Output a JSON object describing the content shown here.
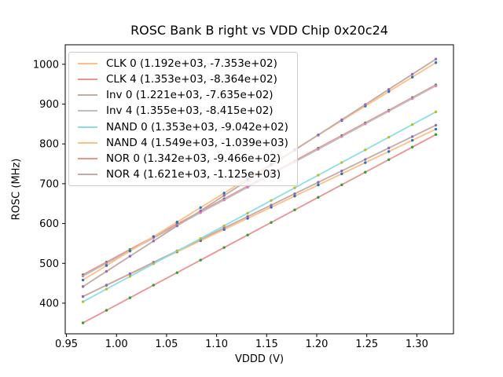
{
  "chart_data": {
    "type": "scatter",
    "title": "ROSC Bank B right vs VDD Chip 0x20c24",
    "xlabel": "VDDD (V)",
    "ylabel": "ROSC (MHz)",
    "xlim": [
      0.9488,
      1.3366
    ],
    "ylim": [
      323,
      1049
    ],
    "grid": false,
    "legend_position": "upper left",
    "xticks": [
      0.95,
      1.0,
      1.05,
      1.1,
      1.15,
      1.2,
      1.25,
      1.3
    ],
    "xtick_labels": [
      "0.95",
      "1.00",
      "1.05",
      "1.10",
      "1.15",
      "1.20",
      "1.25",
      "1.30"
    ],
    "yticks": [
      400,
      500,
      600,
      700,
      800,
      900,
      1000
    ],
    "ytick_labels": [
      "400",
      "500",
      "600",
      "700",
      "800",
      "900",
      "1000"
    ],
    "x": [
      0.9665,
      0.99,
      1.0135,
      1.037,
      1.0605,
      1.084,
      1.1075,
      1.131,
      1.1545,
      1.178,
      1.2015,
      1.225,
      1.2485,
      1.272,
      1.2955,
      1.319
    ],
    "series": [
      {
        "name": "CLK 0",
        "legend_label": "CLK 0 (1.192e+03, -7.353e+02)",
        "fit": {
          "slope": 1192,
          "intercept": -735.3
        },
        "y": [
          416.8,
          444.8,
          472.8,
          500.8,
          528.8,
          556.8,
          584.8,
          612.9,
          640.9,
          668.9,
          696.9,
          724.9,
          752.9,
          780.9,
          808.9,
          837.0
        ],
        "line_color": "#ffbf86",
        "marker_color": "#1f77b4"
      },
      {
        "name": "CLK 4",
        "legend_label": "CLK 4 (1.353e+03, -8.364e+02)",
        "fit": {
          "slope": 1353,
          "intercept": -836.4
        },
        "y": [
          471.3,
          503.1,
          534.9,
          566.7,
          598.5,
          630.2,
          662.0,
          693.8,
          725.6,
          757.4,
          789.2,
          821.0,
          852.8,
          884.6,
          916.4,
          948.2
        ],
        "line_color": "#ea9393",
        "marker_color": "#2ca02c"
      },
      {
        "name": "Inv 0",
        "legend_label": "Inv 0 (1.221e+03, -7.635e+02)",
        "fit": {
          "slope": 1221,
          "intercept": -763.5
        },
        "y": [
          416.6,
          445.3,
          474.0,
          502.7,
          531.4,
          560.1,
          588.8,
          617.5,
          646.1,
          674.8,
          703.5,
          732.2,
          760.9,
          789.6,
          818.3,
          847.0
        ],
        "line_color": "#c5aaa5",
        "marker_color": "#9467bd"
      },
      {
        "name": "Inv 4",
        "legend_label": "Inv 4 (1.355e+03, -8.415e+02)",
        "fit": {
          "slope": 1355,
          "intercept": -841.5
        },
        "y": [
          468.1,
          500.0,
          531.8,
          563.6,
          595.5,
          627.3,
          659.2,
          691.0,
          722.9,
          754.7,
          786.5,
          818.4,
          850.2,
          882.1,
          913.9,
          945.7
        ],
        "line_color": "#bfbfbf",
        "marker_color": "#e377c2"
      },
      {
        "name": "NAND 0",
        "legend_label": "NAND 0 (1.353e+03, -9.042e+02)",
        "fit": {
          "slope": 1353,
          "intercept": -904.2
        },
        "y": [
          403.5,
          435.3,
          467.1,
          498.9,
          530.7,
          562.4,
          594.2,
          626.0,
          657.8,
          689.6,
          721.4,
          753.2,
          785.0,
          816.8,
          848.6,
          880.4
        ],
        "line_color": "#8bdee7",
        "marker_color": "#bcbd22"
      },
      {
        "name": "NAND 4",
        "legend_label": "NAND 4 (1.549e+03, -1.039e+03)",
        "fit": {
          "slope": 1549,
          "intercept": -1039
        },
        "y": [
          458.1,
          494.5,
          530.9,
          567.3,
          603.7,
          640.1,
          676.5,
          712.9,
          749.3,
          785.7,
          822.1,
          858.5,
          894.9,
          931.3,
          967.7,
          1004.1
        ],
        "line_color": "#ffbf86",
        "marker_color": "#1f77b4"
      },
      {
        "name": "NOR 0",
        "legend_label": "NOR 0 (1.342e+03, -9.466e+02)",
        "fit": {
          "slope": 1342,
          "intercept": -946.6
        },
        "y": [
          350.4,
          382.0,
          413.5,
          445.1,
          476.6,
          508.1,
          539.7,
          571.2,
          602.7,
          634.3,
          665.8,
          697.3,
          728.9,
          760.4,
          792.0,
          823.5
        ],
        "line_color": "#ea9393",
        "marker_color": "#2ca02c"
      },
      {
        "name": "NOR 4",
        "legend_label": "NOR 4 (1.621e+03, -1.125e+03)",
        "fit": {
          "slope": 1621,
          "intercept": -1125
        },
        "y": [
          441.7,
          479.8,
          517.9,
          556.0,
          594.1,
          632.2,
          670.3,
          708.4,
          746.4,
          784.5,
          822.6,
          860.7,
          898.8,
          936.9,
          975.0,
          1013.1
        ],
        "line_color": "#c5aaa5",
        "marker_color": "#9467bd"
      }
    ],
    "colors": {
      "spine": "#000000",
      "background": "#ffffff",
      "legend_border": "#cccccc"
    }
  }
}
